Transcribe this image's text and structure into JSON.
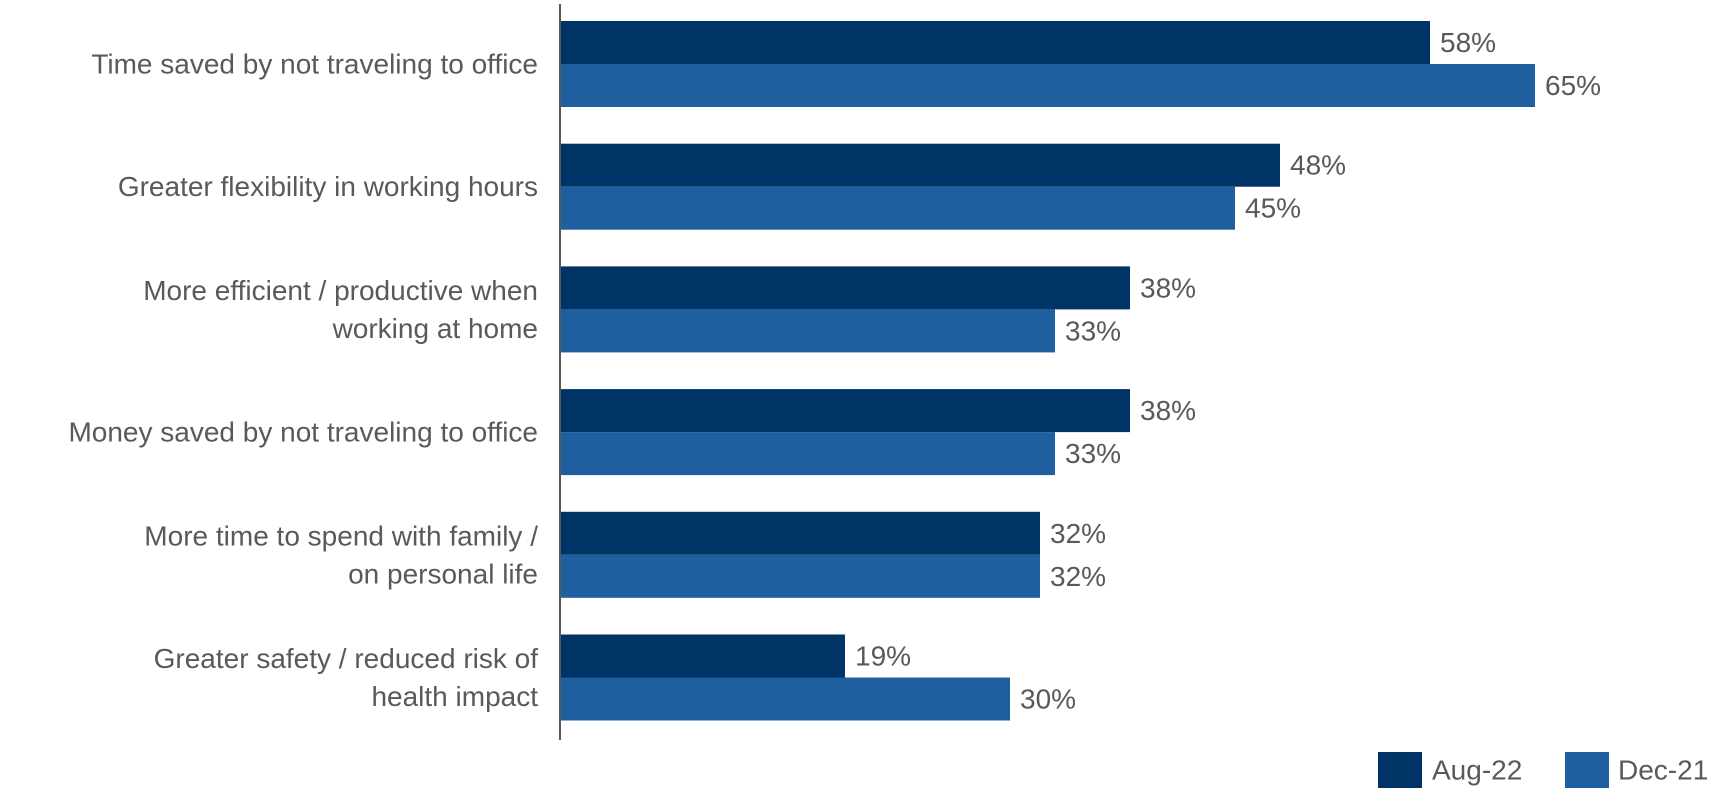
{
  "colors": {
    "series_aug22": "#003366",
    "series_dec21": "#1f5f9f",
    "axis": "#595959",
    "text": "#595959"
  },
  "chart_data": {
    "type": "bar",
    "orientation": "horizontal",
    "categories": [
      [
        "Time saved by not traveling to office"
      ],
      [
        "Greater flexibility in working hours"
      ],
      [
        "More efficient / productive when",
        "working at home"
      ],
      [
        "Money saved by not traveling to office"
      ],
      [
        "More time to spend with family /",
        "on personal life"
      ],
      [
        "Greater safety / reduced risk of",
        "health impact"
      ]
    ],
    "series": [
      {
        "name": "Aug-22",
        "values": [
          58,
          48,
          38,
          38,
          32,
          19
        ],
        "labels": [
          "58%",
          "48%",
          "38%",
          "38%",
          "32%",
          "19%"
        ]
      },
      {
        "name": "Dec-21",
        "values": [
          65,
          45,
          33,
          33,
          32,
          30
        ],
        "labels": [
          "65%",
          "45%",
          "33%",
          "33%",
          "32%",
          "30%"
        ]
      }
    ],
    "xlim": [
      0,
      100
    ],
    "unit": "%",
    "grid": false,
    "legend_position": "bottom-right"
  }
}
